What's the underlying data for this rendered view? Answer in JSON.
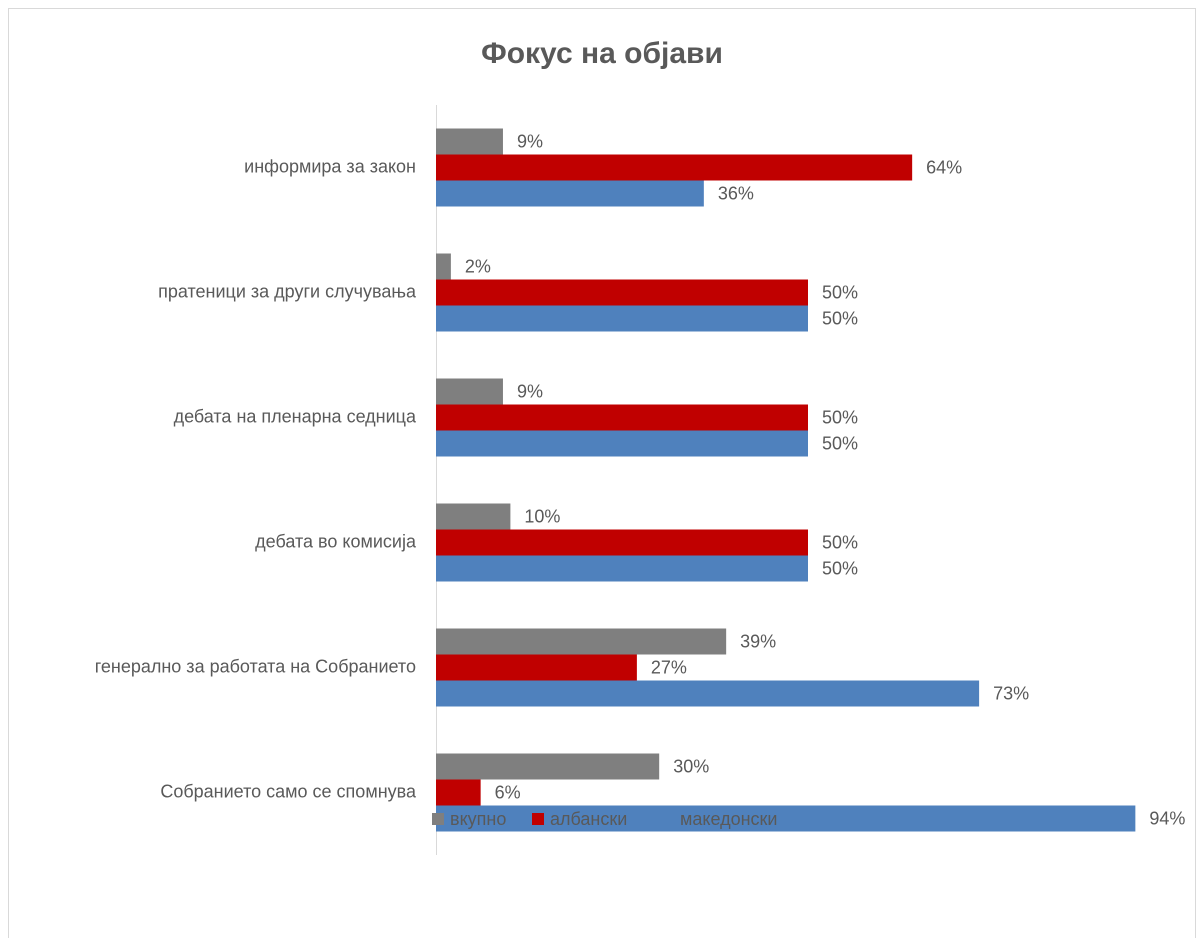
{
  "chart_data": {
    "type": "hbar",
    "title": "Фокус на објави",
    "categories": [
      "информира за закон",
      "пратеници за други случувања",
      "дебата на пленарна седница",
      "дебата во комисија",
      "генерално за работата на Собранието",
      "Собранието само се спомнува"
    ],
    "series": [
      {
        "name": "вкупно",
        "color": "#7f7f7f",
        "values": [
          9,
          2,
          9,
          10,
          39,
          30
        ],
        "value_labels": [
          "9%",
          "2%",
          "9%",
          "10%",
          "39%",
          "30%"
        ]
      },
      {
        "name": "албански",
        "color": "#c00000",
        "values": [
          64,
          50,
          50,
          50,
          27,
          6
        ],
        "value_labels": [
          "64%",
          "50%",
          "50%",
          "50%",
          "27%",
          "6%"
        ]
      },
      {
        "name": "македонски",
        "color": "#4f81bd",
        "values": [
          36,
          50,
          50,
          50,
          73,
          94
        ],
        "value_labels": [
          "36%",
          "50%",
          "50%",
          "50%",
          "73%",
          "94%"
        ]
      }
    ],
    "xlim": [
      0,
      100
    ],
    "legend": "bottom"
  }
}
